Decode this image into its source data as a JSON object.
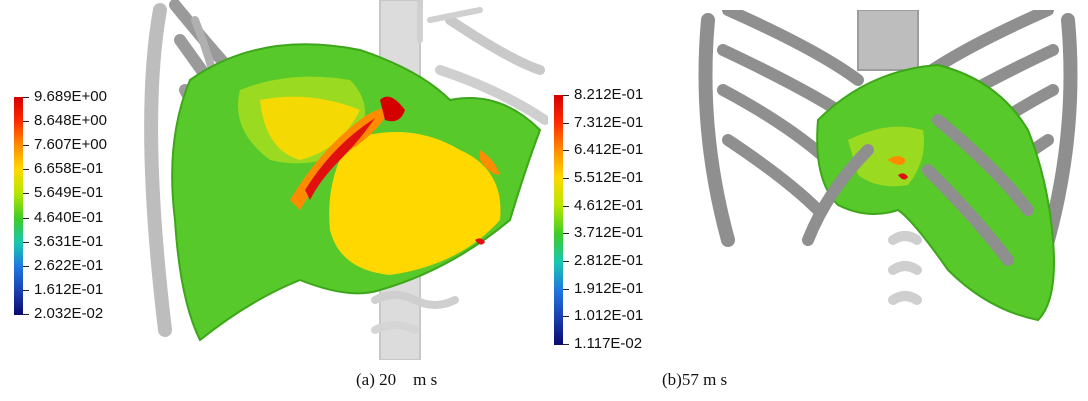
{
  "panels": [
    {
      "legend": {
        "labels": [
          "9.689E+00",
          "8.648E+00",
          "7.607E+00",
          "6.658E-01",
          "5.649E-01",
          "4.640E-01",
          "3.631E-01",
          "2.622E-01",
          "1.612E-01",
          "2.032E-02"
        ],
        "colors": [
          "#d40000",
          "#ff2a00",
          "#ff8c00",
          "#ffd800",
          "#b9e600",
          "#3ccc2a",
          "#19c7b0",
          "#1f77e0",
          "#1a3fb0",
          "#0a0a6e"
        ]
      },
      "caption": "(a) 20    m s"
    },
    {
      "legend": {
        "labels": [
          "8.212E-01",
          "7.312E-01",
          "6.412E-01",
          "5.512E-01",
          "4.612E-01",
          "3.712E-01",
          "2.812E-01",
          "1.912E-01",
          "1.012E-01",
          "1.117E-02"
        ],
        "colors": [
          "#d40000",
          "#ff2a00",
          "#ff8c00",
          "#ffd800",
          "#b9e600",
          "#3ccc2a",
          "#19c7b0",
          "#1f77e0",
          "#1a3fb0",
          "#0a0a6e"
        ]
      },
      "caption": "(b)57 m s"
    }
  ]
}
